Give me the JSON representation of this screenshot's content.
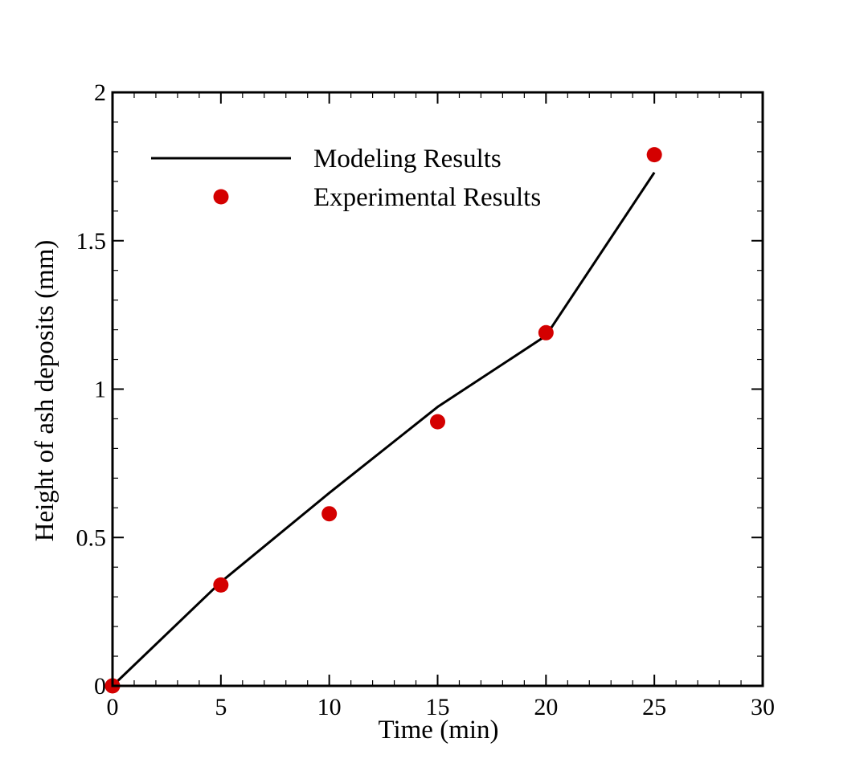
{
  "chart_data": {
    "type": "line",
    "title": "",
    "xlabel": "Time (min)",
    "ylabel": "Height of ash deposits (mm)",
    "xlim": [
      0,
      30
    ],
    "ylim": [
      0,
      2
    ],
    "x_ticks": [
      0,
      5,
      10,
      15,
      20,
      25,
      30
    ],
    "x_tick_labels": [
      "0",
      "5",
      "10",
      "15",
      "20",
      "25",
      "30"
    ],
    "y_ticks": [
      0,
      0.5,
      1,
      1.5,
      2
    ],
    "y_tick_labels": [
      "0",
      "0.5",
      "1",
      "1.5",
      "2"
    ],
    "x_minor_step": 1,
    "y_minor_step": 0.1,
    "grid": false,
    "legend_position": "top-left",
    "series": [
      {
        "name": "Modeling Results",
        "style": "line",
        "color": "#000000",
        "x": [
          0,
          5,
          10,
          15,
          20,
          25
        ],
        "y": [
          0,
          0.35,
          0.65,
          0.94,
          1.18,
          1.73
        ]
      },
      {
        "name": "Experimental Results",
        "style": "marker",
        "color": "#d40000",
        "x": [
          0,
          5,
          10,
          15,
          20,
          25
        ],
        "y": [
          0,
          0.34,
          0.58,
          0.89,
          1.19,
          1.79
        ]
      }
    ]
  }
}
